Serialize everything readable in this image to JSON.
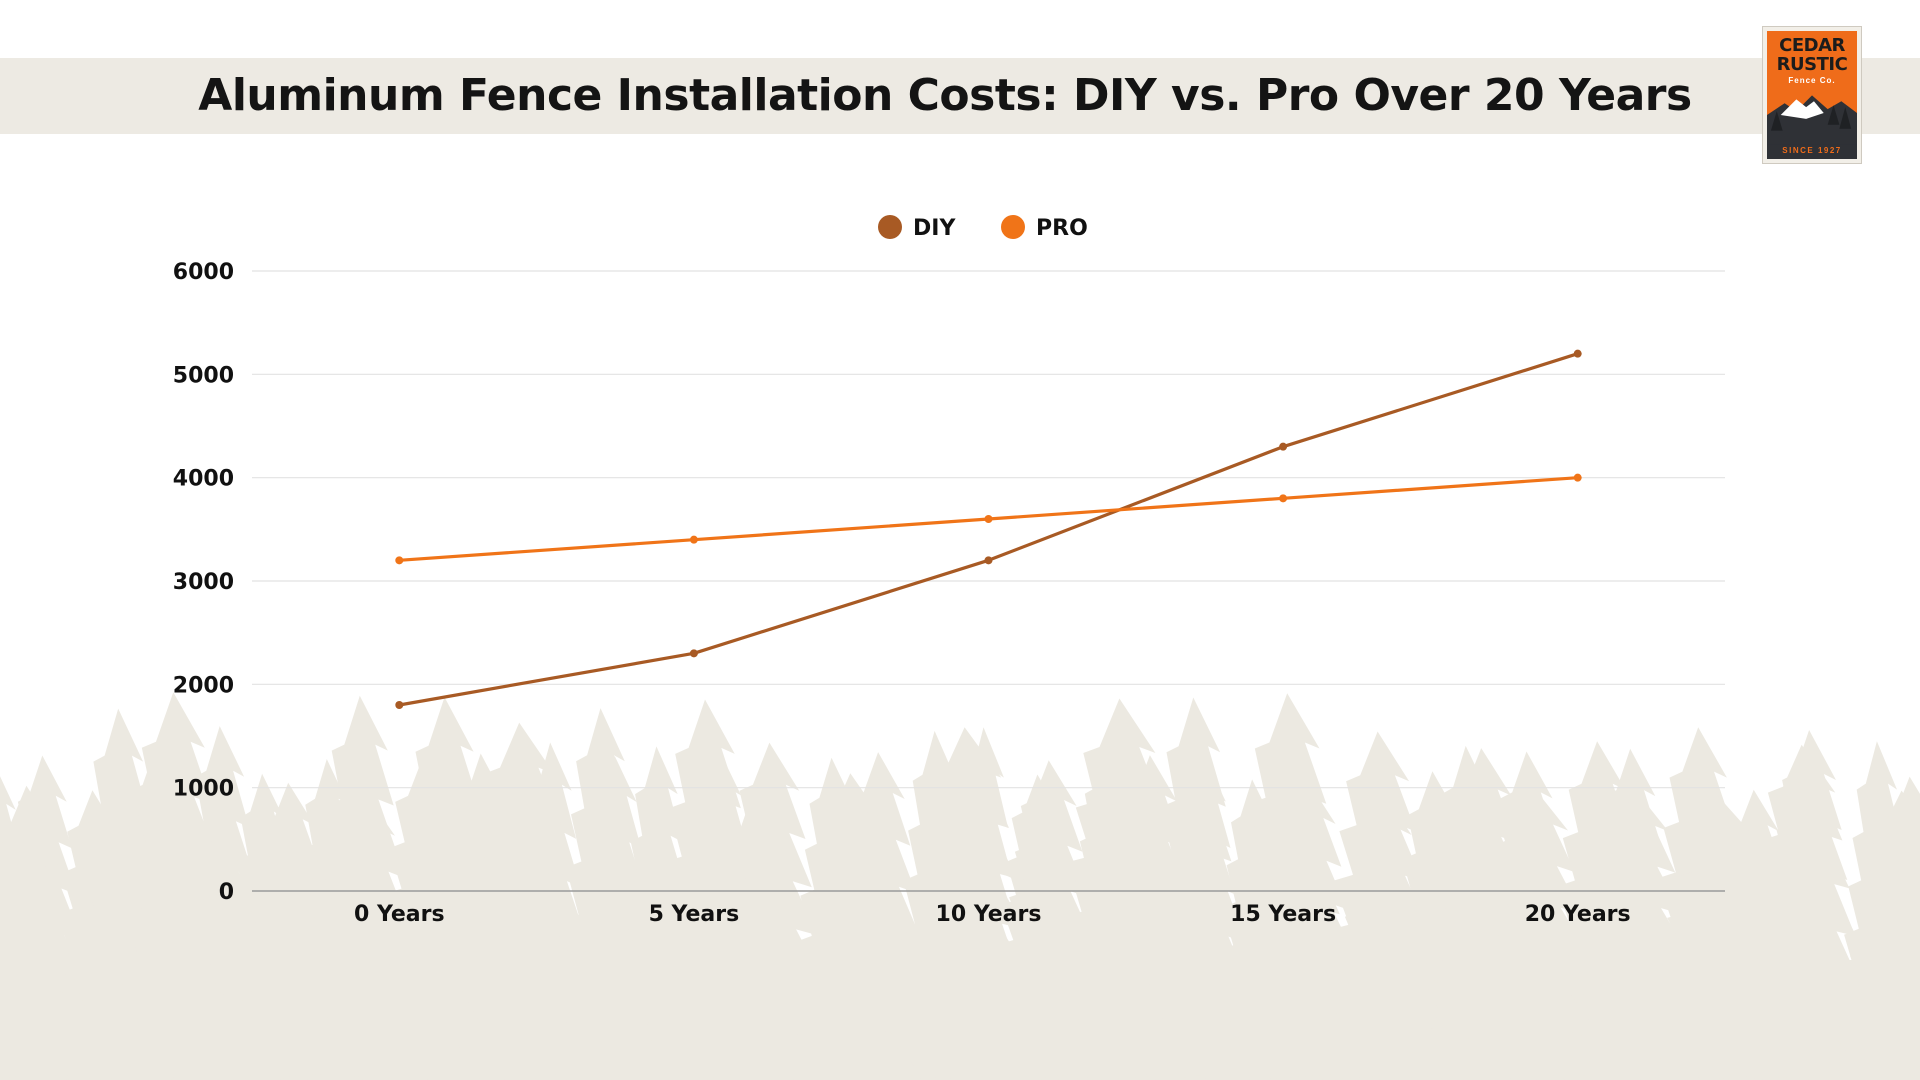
{
  "title": "Aluminum Fence Installation Costs: DIY vs. Pro Over 20 Years",
  "logo": {
    "line1": "CEDAR",
    "line2": "RUSTIC",
    "line3": "Fence Co.",
    "line4": "SINCE 1927"
  },
  "colors": {
    "title_band": "#edeae3",
    "diy": "#a85a24",
    "pro": "#f07418",
    "gridline": "#e2e2e2",
    "axis": "#9a9a9a",
    "trees": "#ece9e1",
    "logo_orange": "#ef6c1a",
    "logo_dark": "#2f3136"
  },
  "chart_data": {
    "type": "line",
    "categories": [
      "0 Years",
      "5 Years",
      "10 Years",
      "15 Years",
      "20 Years"
    ],
    "series": [
      {
        "name": "DIY",
        "values": [
          1800,
          2300,
          3200,
          4300,
          5200
        ]
      },
      {
        "name": "PRO",
        "values": [
          3200,
          3400,
          3600,
          3800,
          4000
        ]
      }
    ],
    "ylim": [
      0,
      6000
    ],
    "yticks": [
      0,
      1000,
      2000,
      3000,
      4000,
      5000,
      6000
    ],
    "grid": true,
    "legend_position": "top-center",
    "xlabel": "",
    "ylabel": ""
  }
}
